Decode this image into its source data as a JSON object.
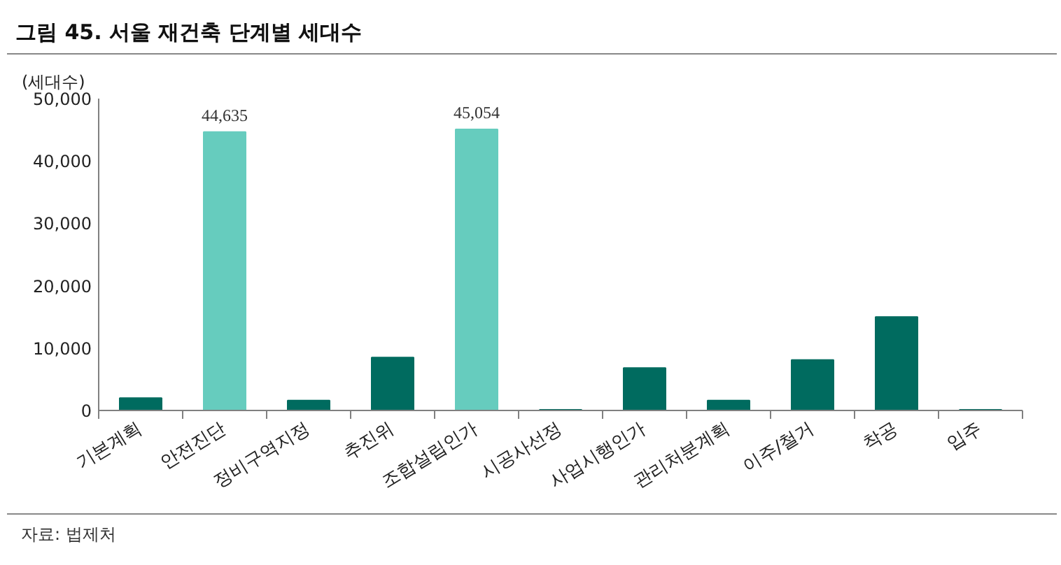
{
  "chart_data": {
    "type": "bar",
    "title": "그림 45. 서울 재건축 단계별 세대수",
    "ylabel": "(세대수)",
    "categories": [
      "기본계획",
      "안전진단",
      "정비구역지정",
      "추진위",
      "조합설립인가",
      "시공사선정",
      "사업시행인가",
      "관리처분계획",
      "이주/철거",
      "착공",
      "입주"
    ],
    "values": [
      2000,
      44635,
      1600,
      8500,
      45054,
      100,
      6800,
      1600,
      8100,
      15000,
      100
    ],
    "colors": [
      "#006b5f",
      "#66ccbe",
      "#006b5f",
      "#006b5f",
      "#66ccbe",
      "#006b5f",
      "#006b5f",
      "#006b5f",
      "#006b5f",
      "#006b5f",
      "#006b5f"
    ],
    "value_labels": [
      null,
      "44,635",
      null,
      null,
      "45,054",
      null,
      null,
      null,
      null,
      null,
      null
    ],
    "ylim": [
      0,
      50000
    ],
    "yticks": [
      {
        "value": 0,
        "label": "0"
      },
      {
        "value": 10000,
        "label": "10,000"
      },
      {
        "value": 20000,
        "label": "20,000"
      },
      {
        "value": 30000,
        "label": "30,000"
      },
      {
        "value": 40000,
        "label": "40,000"
      },
      {
        "value": 50000,
        "label": "50,000"
      }
    ],
    "grid": false,
    "annotations": [
      "자료: 법제처"
    ]
  }
}
